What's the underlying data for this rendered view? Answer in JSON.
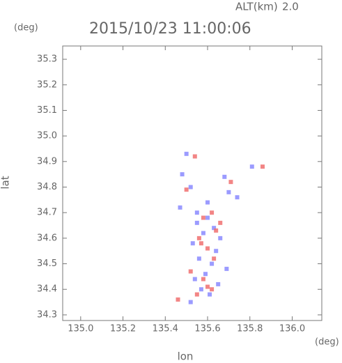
{
  "chart_data": {
    "type": "scatter",
    "title": "2015/10/23 11:00:06",
    "altitude_label": "ALT(km)",
    "altitude": "2.0",
    "y_unit": "(deg)",
    "x_unit": "(deg)",
    "x_label": "lon",
    "y_label": "lat",
    "xlim": [
      134.915,
      136.14
    ],
    "ylim": [
      34.278,
      35.352
    ],
    "xticks": [
      {
        "value": 135.0,
        "label": "135.0"
      },
      {
        "value": 135.2,
        "label": "135.2"
      },
      {
        "value": 135.4,
        "label": "135.4"
      },
      {
        "value": 135.6,
        "label": "135.6"
      },
      {
        "value": 135.8,
        "label": "135.8"
      },
      {
        "value": 136.0,
        "label": "136.0"
      }
    ],
    "yticks": [
      {
        "value": 34.3,
        "label": "34.3"
      },
      34.4,
      34.5,
      34.6,
      34.7,
      34.8,
      34.9,
      {
        "value": 35.0,
        "label": "35.0"
      },
      35.1,
      35.2,
      35.3
    ],
    "series": [
      {
        "color": "#8a8aff",
        "x": [
          135.5,
          135.48,
          135.52,
          135.55,
          135.6,
          135.63,
          135.66,
          135.7,
          135.58,
          135.53,
          135.56,
          135.62,
          135.59,
          135.54,
          135.57,
          135.61,
          135.65,
          135.52,
          135.55,
          135.64,
          135.69,
          135.6,
          135.47,
          135.81,
          135.68,
          135.74
        ],
        "values": [
          34.93,
          34.85,
          34.8,
          34.7,
          34.68,
          34.64,
          34.6,
          34.78,
          34.62,
          34.58,
          34.52,
          34.5,
          34.46,
          34.44,
          34.4,
          34.38,
          34.42,
          34.35,
          34.66,
          34.55,
          34.48,
          34.74,
          34.72,
          34.88,
          34.84,
          34.76
        ]
      },
      {
        "color": "#f07070",
        "x": [
          135.54,
          135.58,
          135.62,
          135.66,
          135.56,
          135.6,
          135.63,
          135.52,
          135.58,
          135.62,
          135.55,
          135.46,
          135.6,
          135.86,
          135.71,
          135.5,
          135.64,
          135.57
        ],
        "values": [
          34.92,
          34.68,
          34.7,
          34.66,
          34.6,
          34.56,
          34.52,
          34.47,
          34.44,
          34.4,
          34.38,
          34.36,
          34.41,
          34.88,
          34.82,
          34.79,
          34.63,
          34.58
        ]
      }
    ]
  }
}
